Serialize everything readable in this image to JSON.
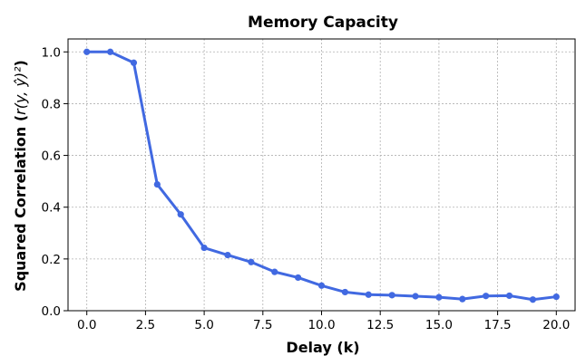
{
  "chart_data": {
    "type": "line",
    "title": "Memory Capacity",
    "xlabel": "Delay (k)",
    "ylabel_prefix": "Squared Correlation (",
    "ylabel_math": "r(y, ŷ)²",
    "ylabel_suffix": ")",
    "xlim": [
      -0.8,
      20.8
    ],
    "ylim": [
      0.0,
      1.05
    ],
    "xticks": [
      0.0,
      2.5,
      5.0,
      7.5,
      10.0,
      12.5,
      15.0,
      17.5,
      20.0
    ],
    "xtick_labels": [
      "0.0",
      "2.5",
      "5.0",
      "7.5",
      "10.0",
      "12.5",
      "15.0",
      "17.5",
      "20.0"
    ],
    "yticks": [
      0.0,
      0.2,
      0.4,
      0.6,
      0.8,
      1.0
    ],
    "ytick_labels": [
      "0.0",
      "0.2",
      "0.4",
      "0.6",
      "0.8",
      "1.0"
    ],
    "grid": true,
    "line_color": "#4169e1",
    "series": [
      {
        "x": [
          0,
          1,
          2,
          3,
          4,
          5,
          6,
          7,
          8,
          9,
          10,
          11,
          12,
          13,
          14,
          15,
          16,
          17,
          18,
          19,
          20
        ],
        "values": [
          1.0,
          1.0,
          0.958,
          0.488,
          0.372,
          0.243,
          0.215,
          0.188,
          0.15,
          0.128,
          0.097,
          0.072,
          0.062,
          0.06,
          0.056,
          0.052,
          0.045,
          0.057,
          0.058,
          0.043,
          0.054
        ]
      }
    ]
  }
}
